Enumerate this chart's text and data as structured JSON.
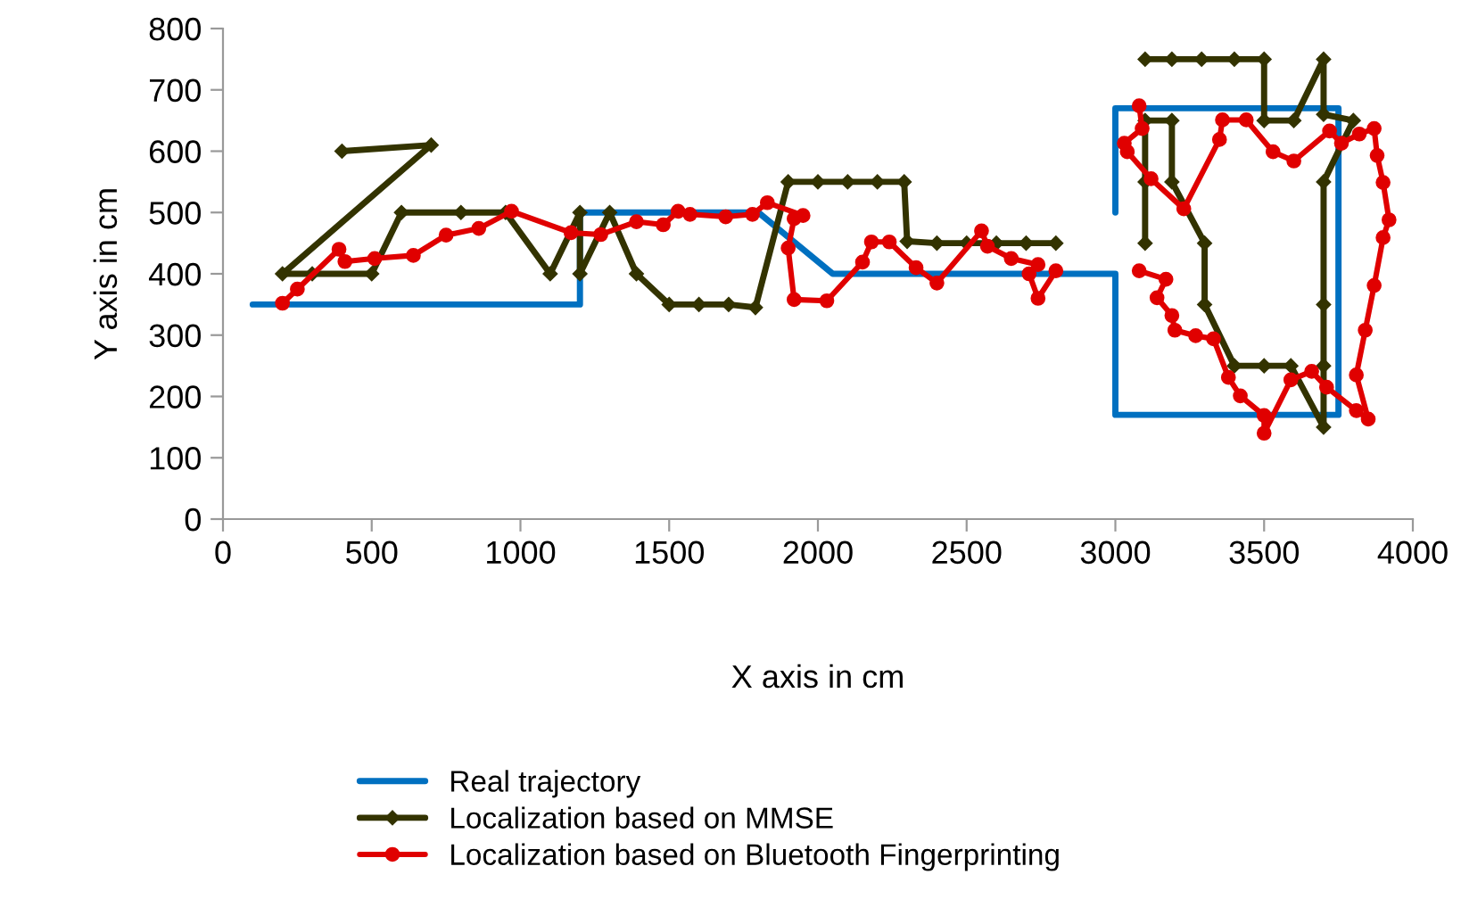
{
  "chart_data": {
    "type": "line",
    "xlabel": "X axis in cm",
    "ylabel": "Y axis in cm",
    "xlim": [
      0,
      4000
    ],
    "ylim": [
      0,
      800
    ],
    "xticks": [
      0,
      500,
      1000,
      1500,
      2000,
      2500,
      3000,
      3500,
      4000
    ],
    "yticks": [
      0,
      100,
      200,
      300,
      400,
      500,
      600,
      700,
      800
    ],
    "grid": false,
    "legend": "bottom",
    "line_style": "solid",
    "series": [
      {
        "name": "Real trajectory",
        "color": "#0070c0",
        "marker": "none",
        "x": [
          100,
          1200,
          1200,
          1800,
          2050,
          3000,
          3000,
          3750,
          3750,
          3000,
          3000
        ],
        "values": [
          350,
          350,
          500,
          500,
          400,
          400,
          170,
          170,
          670,
          670,
          500
        ]
      },
      {
        "name": "Localization based on MMSE",
        "color": "#333300",
        "marker": "diamond",
        "x": [
          400,
          700,
          200,
          300,
          500,
          600,
          800,
          950,
          1100,
          1200,
          1200,
          1300,
          1390,
          1500,
          1600,
          1700,
          1790,
          1900,
          2000,
          2100,
          2200,
          2290,
          2300,
          2400,
          2500,
          2600,
          2700,
          2800,
          null,
          3100,
          3100,
          3100,
          3190,
          3190,
          3300,
          3300,
          3400,
          3500,
          3590,
          3700,
          3700,
          3700,
          3700,
          3800,
          3700,
          3700,
          3600,
          3500,
          3500,
          3400,
          3290,
          3190,
          3100
        ],
        "values": [
          600,
          610,
          400,
          400,
          400,
          500,
          500,
          500,
          400,
          500,
          400,
          500,
          400,
          350,
          350,
          350,
          345,
          550,
          550,
          550,
          550,
          550,
          453,
          450,
          450,
          450,
          450,
          450,
          null,
          450,
          550,
          650,
          650,
          550,
          450,
          350,
          250,
          250,
          250,
          150,
          250,
          350,
          550,
          650,
          660,
          750,
          650,
          650,
          750,
          750,
          750,
          750,
          750
        ]
      },
      {
        "name": "Localization based on Bluetooth Fingerprinting",
        "color": "#e00000",
        "marker": "circle",
        "x": [
          200,
          250,
          390,
          410,
          510,
          640,
          750,
          860,
          970,
          1170,
          1270,
          1390,
          1480,
          1530,
          1570,
          1690,
          1780,
          1830,
          1950,
          1920,
          1900,
          1920,
          2030,
          2150,
          2180,
          2240,
          2330,
          2400,
          2550,
          2570,
          2650,
          2740,
          2710,
          2740,
          2800,
          null,
          3080,
          3170,
          3140,
          3190,
          3200,
          3270,
          3330,
          3380,
          3420,
          3500,
          3500,
          3590,
          3660,
          3710,
          3810,
          3850,
          3810,
          3840,
          3870,
          3900,
          3920,
          3900,
          3880,
          3870,
          3820,
          3760,
          3720,
          3600,
          3530,
          3440,
          3360,
          3350,
          3230,
          3120,
          3040,
          3030,
          3090,
          3080
        ],
        "values": [
          352,
          375,
          440,
          420,
          425,
          430,
          463,
          474,
          502,
          467,
          464,
          485,
          480,
          502,
          497,
          493,
          497,
          516,
          495,
          490,
          442,
          358,
          356,
          419,
          452,
          452,
          410,
          385,
          470,
          445,
          425,
          415,
          400,
          360,
          405,
          null,
          405,
          391,
          361,
          332,
          308,
          299,
          294,
          231,
          201,
          169,
          140,
          227,
          241,
          215,
          177,
          163,
          235,
          308,
          381,
          459,
          488,
          549,
          593,
          637,
          628,
          613,
          633,
          584,
          599,
          651,
          651,
          619,
          506,
          555,
          599,
          613,
          637,
          674
        ]
      }
    ]
  }
}
